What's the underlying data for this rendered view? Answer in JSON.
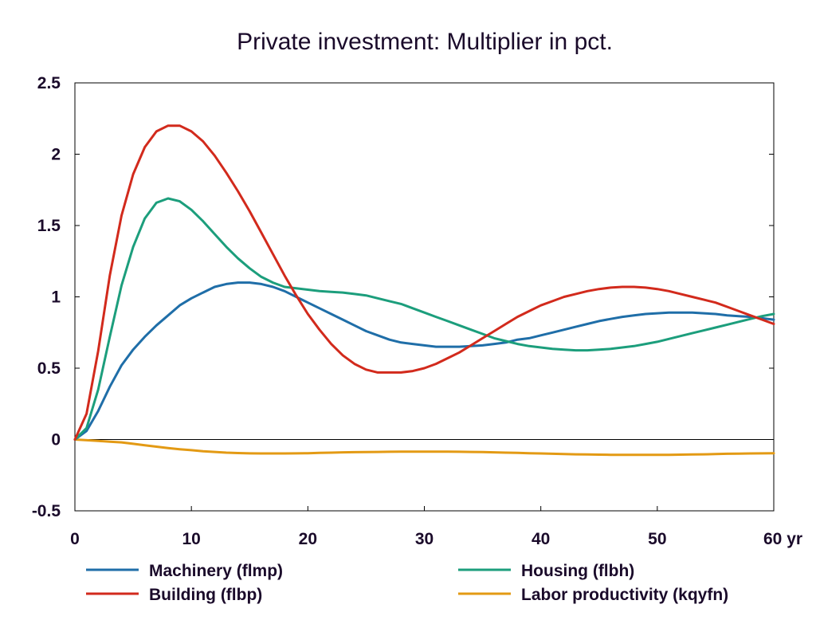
{
  "chart_data": {
    "type": "line",
    "title": "Private investment: Multiplier in pct.",
    "xlim": [
      0,
      60
    ],
    "ylim": [
      -0.5,
      2.5
    ],
    "x_ticks": [
      0,
      10,
      20,
      30,
      40,
      50,
      60
    ],
    "x_tick_labels": [
      "0",
      "10",
      "20",
      "30",
      "40",
      "50",
      "60 yr"
    ],
    "y_ticks": [
      -0.5,
      0,
      0.5,
      1,
      1.5,
      2,
      2.5
    ],
    "y_tick_labels": [
      "-0.5",
      "0",
      "0.5",
      "1",
      "1.5",
      "2",
      "2.5"
    ],
    "grid": false,
    "zero_line": true,
    "legend_position": "bottom",
    "x": [
      0,
      1,
      2,
      3,
      4,
      5,
      6,
      7,
      8,
      9,
      10,
      11,
      12,
      13,
      14,
      15,
      16,
      17,
      18,
      19,
      20,
      21,
      22,
      23,
      24,
      25,
      26,
      27,
      28,
      29,
      30,
      31,
      32,
      33,
      34,
      35,
      36,
      37,
      38,
      39,
      40,
      41,
      42,
      43,
      44,
      45,
      46,
      47,
      48,
      49,
      50,
      51,
      52,
      53,
      54,
      55,
      56,
      57,
      58,
      59,
      60
    ],
    "series": [
      {
        "name": "Machinery (flmp)",
        "color": "#1f6ea8",
        "values": [
          0,
          0.06,
          0.2,
          0.37,
          0.52,
          0.63,
          0.72,
          0.8,
          0.87,
          0.94,
          0.99,
          1.03,
          1.07,
          1.09,
          1.1,
          1.1,
          1.09,
          1.07,
          1.04,
          1.0,
          0.96,
          0.92,
          0.88,
          0.84,
          0.8,
          0.76,
          0.73,
          0.7,
          0.68,
          0.67,
          0.66,
          0.65,
          0.65,
          0.65,
          0.655,
          0.66,
          0.67,
          0.68,
          0.7,
          0.71,
          0.73,
          0.75,
          0.77,
          0.79,
          0.81,
          0.83,
          0.845,
          0.86,
          0.87,
          0.88,
          0.885,
          0.89,
          0.89,
          0.89,
          0.885,
          0.88,
          0.87,
          0.865,
          0.86,
          0.85,
          0.84
        ]
      },
      {
        "name": "Building (flbp)",
        "color": "#d22a1c",
        "values": [
          0,
          0.18,
          0.62,
          1.15,
          1.57,
          1.86,
          2.05,
          2.16,
          2.2,
          2.2,
          2.16,
          2.09,
          1.99,
          1.87,
          1.74,
          1.6,
          1.45,
          1.3,
          1.15,
          1.01,
          0.88,
          0.77,
          0.67,
          0.59,
          0.53,
          0.49,
          0.47,
          0.47,
          0.47,
          0.48,
          0.5,
          0.53,
          0.57,
          0.61,
          0.66,
          0.71,
          0.76,
          0.81,
          0.86,
          0.9,
          0.94,
          0.97,
          1.0,
          1.02,
          1.04,
          1.055,
          1.065,
          1.07,
          1.07,
          1.065,
          1.055,
          1.04,
          1.02,
          1.0,
          0.98,
          0.96,
          0.93,
          0.9,
          0.87,
          0.84,
          0.81
        ]
      },
      {
        "name": "Housing (flbh)",
        "color": "#1c9e7c",
        "values": [
          0,
          0.08,
          0.35,
          0.72,
          1.08,
          1.35,
          1.55,
          1.66,
          1.69,
          1.67,
          1.61,
          1.53,
          1.44,
          1.35,
          1.27,
          1.2,
          1.14,
          1.1,
          1.07,
          1.06,
          1.05,
          1.04,
          1.035,
          1.03,
          1.02,
          1.01,
          0.99,
          0.97,
          0.95,
          0.92,
          0.89,
          0.86,
          0.83,
          0.8,
          0.77,
          0.74,
          0.71,
          0.69,
          0.67,
          0.655,
          0.645,
          0.635,
          0.63,
          0.625,
          0.625,
          0.63,
          0.635,
          0.645,
          0.655,
          0.67,
          0.685,
          0.705,
          0.725,
          0.745,
          0.765,
          0.785,
          0.805,
          0.825,
          0.845,
          0.865,
          0.88
        ]
      },
      {
        "name": "Labor productivity (kqyfn)",
        "color": "#e39a14",
        "values": [
          0,
          -0.005,
          -0.01,
          -0.015,
          -0.02,
          -0.03,
          -0.04,
          -0.05,
          -0.06,
          -0.068,
          -0.075,
          -0.082,
          -0.087,
          -0.092,
          -0.095,
          -0.097,
          -0.098,
          -0.098,
          -0.098,
          -0.097,
          -0.096,
          -0.094,
          -0.092,
          -0.09,
          -0.089,
          -0.088,
          -0.087,
          -0.086,
          -0.085,
          -0.085,
          -0.085,
          -0.085,
          -0.085,
          -0.086,
          -0.087,
          -0.088,
          -0.09,
          -0.092,
          -0.094,
          -0.096,
          -0.098,
          -0.1,
          -0.102,
          -0.104,
          -0.105,
          -0.106,
          -0.107,
          -0.108,
          -0.108,
          -0.108,
          -0.108,
          -0.107,
          -0.106,
          -0.105,
          -0.104,
          -0.102,
          -0.1,
          -0.099,
          -0.098,
          -0.097,
          -0.096
        ]
      }
    ]
  }
}
